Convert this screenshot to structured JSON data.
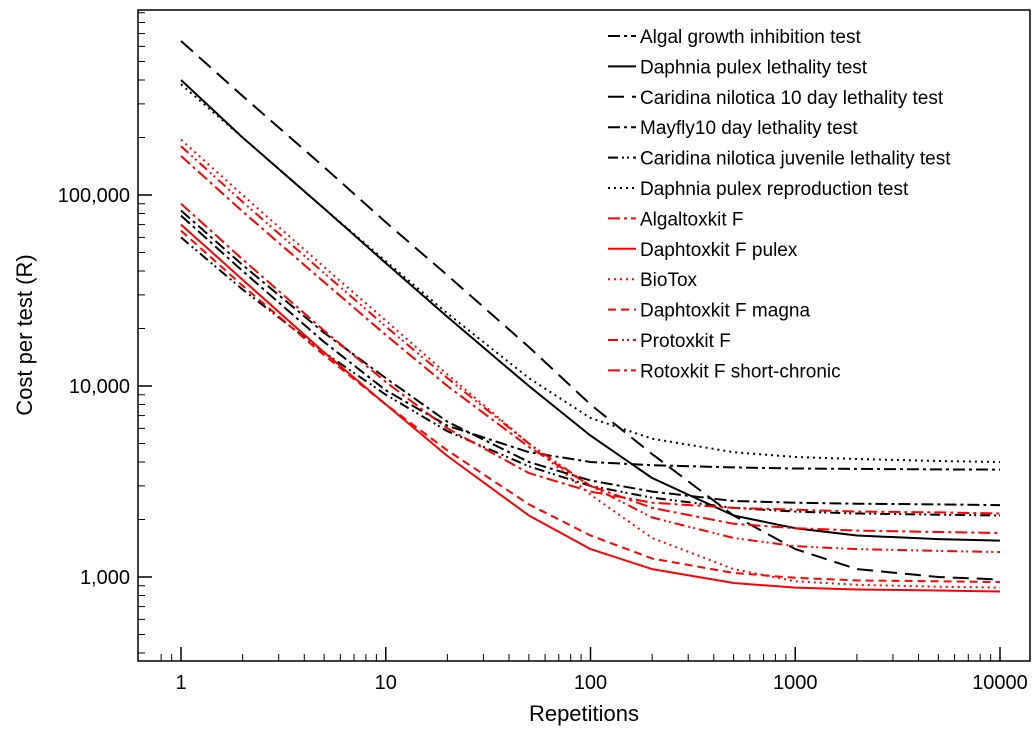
{
  "chart_data": {
    "type": "line",
    "xlabel": "Repetitions",
    "ylabel": "Cost per test (R)",
    "x_scale": "log",
    "y_scale": "log",
    "xlim": [
      0.8,
      12000
    ],
    "ylim": [
      400,
      1000000
    ],
    "x_ticks": [
      1,
      10,
      100,
      1000,
      10000
    ],
    "x_tick_labels": [
      "1",
      "10",
      "100",
      "1000",
      "10000"
    ],
    "y_ticks": [
      1000,
      10000,
      100000
    ],
    "y_tick_labels": [
      "1,000",
      "10,000",
      "100,000"
    ],
    "grid": false,
    "legend_position": "top-right",
    "x": [
      1,
      2,
      5,
      10,
      20,
      50,
      100,
      200,
      500,
      1000,
      2000,
      5000,
      10000
    ],
    "series": [
      {
        "name": "Algal growth inhibition test",
        "color": "#000000",
        "dash": "dashdot",
        "values": [
          78000,
          40000,
          17000,
          9500,
          6200,
          4500,
          4000,
          3850,
          3750,
          3700,
          3680,
          3660,
          3650
        ]
      },
      {
        "name": "Daphnia pulex lethality test",
        "color": "#000000",
        "dash": "solid",
        "values": [
          400000,
          200000,
          85000,
          44000,
          23000,
          10000,
          5500,
          3300,
          2100,
          1800,
          1650,
          1580,
          1550
        ]
      },
      {
        "name": "Caridina nilotica 10 day lethality test",
        "color": "#000000",
        "dash": "longdash",
        "values": [
          640000,
          330000,
          140000,
          72000,
          38000,
          16000,
          8000,
          4400,
          2100,
          1400,
          1100,
          1000,
          970
        ]
      },
      {
        "name": "Mayfly10 day lethality test",
        "color": "#000000",
        "dash": "dashdot",
        "values": [
          83000,
          43000,
          19000,
          11000,
          6500,
          4000,
          3200,
          2800,
          2500,
          2450,
          2420,
          2400,
          2380
        ]
      },
      {
        "name": "Caridina nilotica juvenile lethality test",
        "color": "#000000",
        "dash": "dashdotdot",
        "values": [
          60000,
          32000,
          15000,
          9000,
          5800,
          3800,
          3000,
          2600,
          2300,
          2200,
          2150,
          2120,
          2100
        ]
      },
      {
        "name": "Daphnia pulex reproduction test",
        "color": "#000000",
        "dash": "dotted",
        "values": [
          380000,
          200000,
          85000,
          45000,
          24000,
          11000,
          6800,
          5300,
          4500,
          4250,
          4150,
          4050,
          4000
        ]
      },
      {
        "name": "Algaltoxkit F",
        "color": "#ff0000",
        "dash": "dashdot",
        "values": [
          90000,
          46000,
          19500,
          10500,
          6000,
          3500,
          2800,
          2450,
          2300,
          2250,
          2200,
          2180,
          2150
        ]
      },
      {
        "name": "Daphtoxkit F pulex",
        "color": "#ff0000",
        "dash": "solid",
        "values": [
          70000,
          36000,
          15000,
          8000,
          4300,
          2100,
          1400,
          1100,
          930,
          880,
          860,
          850,
          840
        ]
      },
      {
        "name": "BioTox",
        "color": "#ff0000",
        "dash": "dotted",
        "values": [
          195000,
          100000,
          42000,
          22000,
          11500,
          5000,
          2700,
          1600,
          1100,
          950,
          910,
          890,
          880
        ]
      },
      {
        "name": "Daphtoxkit F magna",
        "color": "#ff0000",
        "dash": "dashed",
        "values": [
          65000,
          33500,
          14500,
          8000,
          4600,
          2400,
          1650,
          1250,
          1050,
          990,
          960,
          950,
          940
        ]
      },
      {
        "name": "Protoxkit F",
        "color": "#ff0000",
        "dash": "dashdotdot",
        "values": [
          180000,
          92000,
          39000,
          20500,
          11000,
          5000,
          3000,
          2050,
          1600,
          1450,
          1400,
          1370,
          1350
        ]
      },
      {
        "name": "Rotoxkit F short-chronic",
        "color": "#ff0000",
        "dash": "dashdot",
        "values": [
          160000,
          82000,
          35000,
          18500,
          10000,
          4800,
          3000,
          2300,
          1900,
          1800,
          1750,
          1720,
          1700
        ]
      }
    ]
  }
}
